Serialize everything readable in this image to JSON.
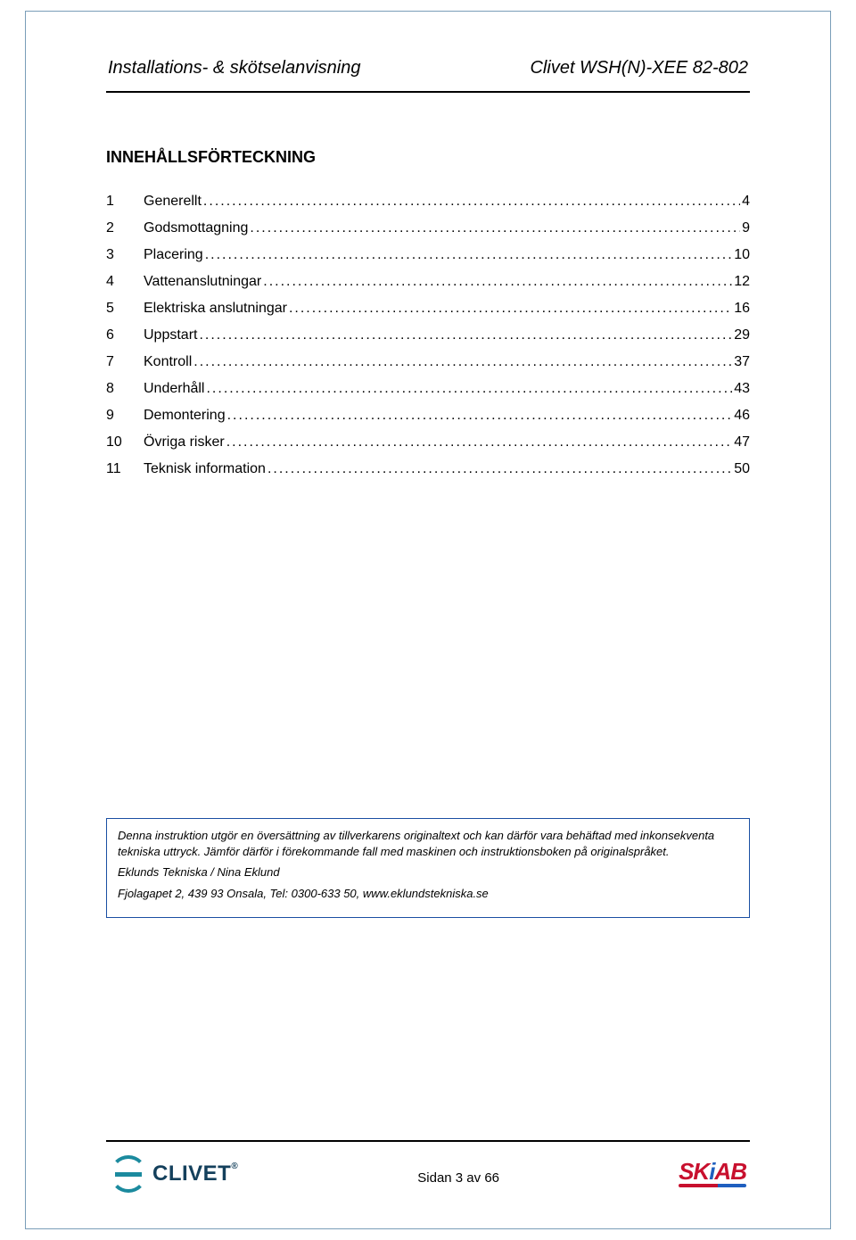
{
  "header": {
    "left": "Installations- & skötselanvisning",
    "right": "Clivet WSH(N)-XEE 82-802"
  },
  "toc": {
    "title": "INNEHÅLLSFÖRTECKNING",
    "items": [
      {
        "num": "1",
        "label": "Generellt",
        "page": "4"
      },
      {
        "num": "2",
        "label": "Godsmottagning",
        "page": "9"
      },
      {
        "num": "3",
        "label": "Placering",
        "page": "10"
      },
      {
        "num": "4",
        "label": "Vattenanslutningar",
        "page": "12"
      },
      {
        "num": "5",
        "label": "Elektriska anslutningar",
        "page": "16"
      },
      {
        "num": "6",
        "label": "Uppstart",
        "page": "29"
      },
      {
        "num": "7",
        "label": "Kontroll",
        "page": "37"
      },
      {
        "num": "8",
        "label": "Underhåll",
        "page": "43"
      },
      {
        "num": "9",
        "label": "Demontering",
        "page": "46"
      },
      {
        "num": "10",
        "label": "Övriga risker",
        "page": "47"
      },
      {
        "num": "11",
        "label": "Teknisk information",
        "page": "50"
      }
    ]
  },
  "note": {
    "p1": "Denna instruktion utgör en översättning av tillverkarens originaltext och kan därför vara behäftad med inkonsekventa tekniska uttryck. Jämför därför i förekommande fall med maskinen och instruktionsboken på originalspråket.",
    "p2": "Eklunds Tekniska  / Nina Eklund",
    "p3": "Fjolagapet 2, 439 93 Onsala, Tel: 0300-633 50, www.eklundstekniska.se"
  },
  "footer": {
    "page_label": "Sidan 3 av 66",
    "logo_left_text": "CLIVET",
    "logo_right_sk": "SK",
    "logo_right_i": "i",
    "logo_right_ab": "AB"
  },
  "colors": {
    "page_border": "#7a9db8",
    "rule": "#000000",
    "note_border": "#1a4fa3",
    "clivet_mark": "#1b8a9e",
    "clivet_text": "#14405c",
    "skiab_red": "#c8102e",
    "skiab_blue": "#1f5fbf"
  }
}
